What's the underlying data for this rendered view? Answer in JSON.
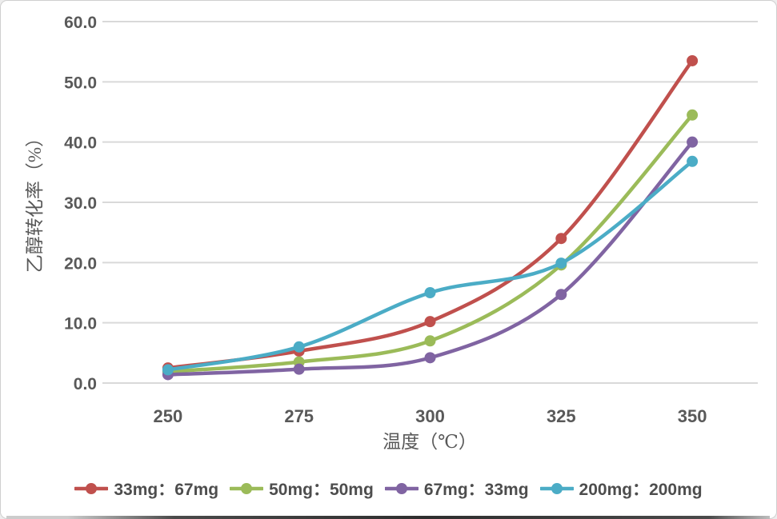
{
  "chart_data": {
    "type": "line",
    "title": "",
    "xlabel": "温度（℃）",
    "ylabel": "乙醇转化率（%）",
    "categories": [
      250,
      275,
      300,
      325,
      350
    ],
    "x_ticks": [
      "250",
      "275",
      "300",
      "325",
      "350"
    ],
    "y_ticks": [
      "0.0",
      "10.0",
      "20.0",
      "30.0",
      "40.0",
      "50.0",
      "60.0"
    ],
    "ylim": [
      0,
      60
    ],
    "grid": "horizontal-only",
    "line_style": "smooth",
    "marker": "filled-circle",
    "legend_position": "bottom",
    "series": [
      {
        "name": "33mg：67mg",
        "color": "#C0504D",
        "values": [
          2.5,
          5.3,
          10.2,
          24.0,
          53.5
        ]
      },
      {
        "name": "50mg：50mg",
        "color": "#9BBB59",
        "values": [
          1.9,
          3.5,
          7.0,
          19.6,
          44.5
        ]
      },
      {
        "name": "67mg：33mg",
        "color": "#8064A2",
        "values": [
          1.4,
          2.3,
          4.2,
          14.7,
          40.0
        ]
      },
      {
        "name": "200mg：200mg",
        "color": "#4BACC6",
        "values": [
          2.2,
          6.0,
          15.0,
          19.9,
          36.8
        ]
      }
    ]
  },
  "colors": {
    "tick_text": "#595959",
    "axis_title_text": "#595959",
    "legend_text": "#4d4d4d",
    "gridline": "#D9D9D9",
    "frame_border": "#CFCFCF",
    "background": "#FFFFFF"
  }
}
